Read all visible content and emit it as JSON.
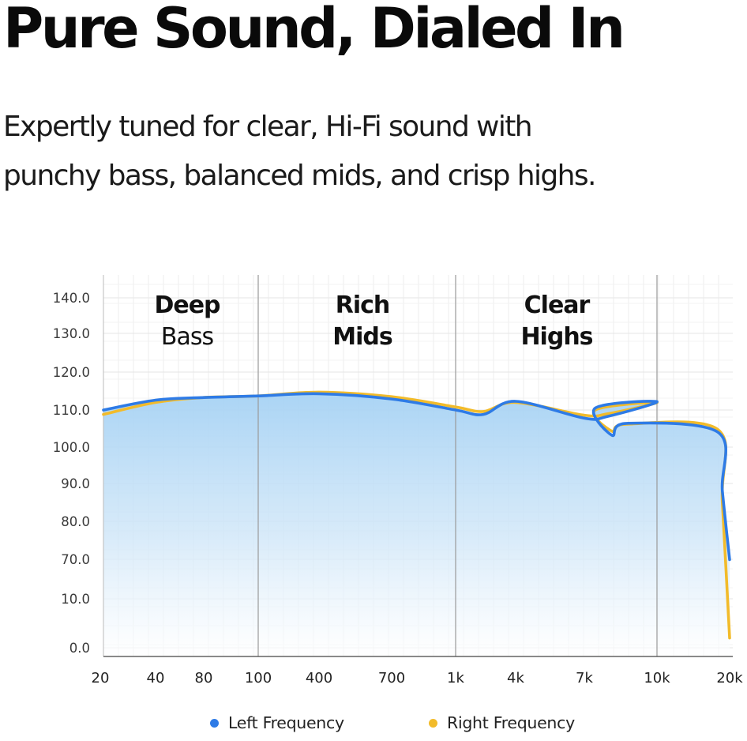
{
  "header": {
    "title": "Pure Sound, Dialed In",
    "subtitle_line1": "Expertly tuned for clear, Hi-Fi sound with",
    "subtitle_line2": "punchy bass, balanced mids, and crisp highs."
  },
  "chart_data": {
    "type": "line",
    "title": "",
    "xlabel": "",
    "ylabel": "",
    "grid": true,
    "legend_placement": "bottom-center",
    "x_ticks": [
      "20",
      "40",
      "80",
      "100",
      "400",
      "700",
      "1k",
      "4k",
      "7k",
      "10k",
      "20k"
    ],
    "y_ticks": [
      "0.0",
      "10.0",
      "70.0",
      "80.0",
      "90.0",
      "100.0",
      "110.0",
      "120.0",
      "130.0",
      "140.0"
    ],
    "regions": [
      {
        "line1": "Deep",
        "line2": "Bass",
        "from": "20",
        "to": "100"
      },
      {
        "line1": "Rich",
        "line2": "Mids",
        "from": "100",
        "to": "1k"
      },
      {
        "line1": "Clear",
        "line2": "Highs",
        "from": "1k",
        "to": "10k"
      }
    ],
    "region_dividers": [
      "100",
      "1k",
      "10k"
    ],
    "series": [
      {
        "name": "Left Frequency",
        "color": "#2e7be6",
        "points": [
          [
            "20",
            110.0
          ],
          [
            "40",
            112.6
          ],
          [
            "80",
            113.3
          ],
          [
            "100",
            113.7
          ],
          [
            "400",
            114.3
          ],
          [
            "700",
            112.9
          ],
          [
            "1k",
            110.0
          ],
          [
            "1k",
            108.8
          ],
          [
            "4k",
            112.3
          ],
          [
            "7k",
            107.8
          ],
          [
            "7k",
            108.3
          ],
          [
            "10k",
            112.2
          ],
          [
            "10k",
            110.5
          ],
          [
            "10k",
            103.2
          ],
          [
            "10k",
            106.4
          ],
          [
            "20k",
            104.0
          ],
          [
            "20k",
            88.0
          ],
          [
            "20k",
            69.5
          ]
        ]
      },
      {
        "name": "Right Frequency",
        "color": "#f2bb2a",
        "points": [
          [
            "20",
            108.8
          ],
          [
            "40",
            112.0
          ],
          [
            "80",
            113.3
          ],
          [
            "100",
            113.7
          ],
          [
            "400",
            114.7
          ],
          [
            "700",
            113.5
          ],
          [
            "1k",
            110.8
          ],
          [
            "1k",
            109.6
          ],
          [
            "4k",
            112.0
          ],
          [
            "7k",
            108.6
          ],
          [
            "7k",
            109.0
          ],
          [
            "10k",
            112.0
          ],
          [
            "10k",
            110.0
          ],
          [
            "10k",
            104.3
          ],
          [
            "10k",
            106.2
          ],
          [
            "20k",
            104.7
          ],
          [
            "20k",
            85.0
          ],
          [
            "20k",
            2.0
          ]
        ]
      }
    ]
  }
}
